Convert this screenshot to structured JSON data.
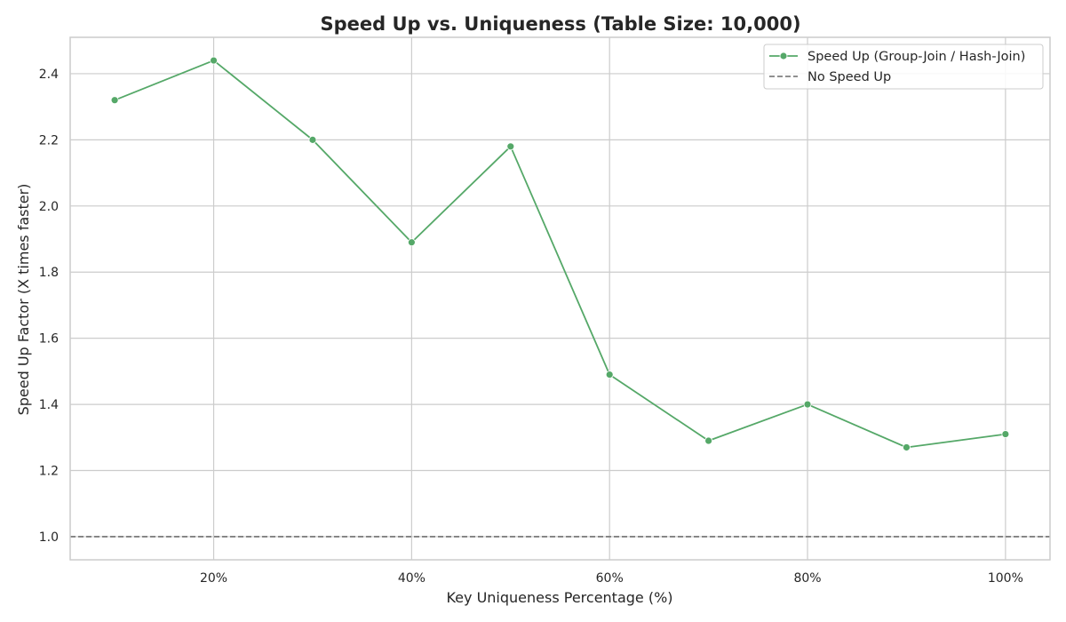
{
  "chart_data": {
    "type": "line",
    "title": "Speed Up vs. Uniqueness (Table Size: 10,000)",
    "xlabel": "Key Uniqueness Percentage (%)",
    "ylabel": "Speed Up Factor (X times faster)",
    "x": [
      10,
      20,
      30,
      40,
      50,
      60,
      70,
      80,
      90,
      100
    ],
    "xlim": [
      5.5,
      104.5
    ],
    "ylim": [
      0.93,
      2.51
    ],
    "x_ticks": [
      20,
      40,
      60,
      80,
      100
    ],
    "x_tick_labels": [
      "20%",
      "40%",
      "60%",
      "80%",
      "100%"
    ],
    "y_ticks": [
      1.0,
      1.2,
      1.4,
      1.6,
      1.8,
      2.0,
      2.2,
      2.4
    ],
    "y_tick_labels": [
      "1.0",
      "1.2",
      "1.4",
      "1.6",
      "1.8",
      "2.0",
      "2.2",
      "2.4"
    ],
    "grid": true,
    "series": [
      {
        "name": "Speed Up (Group-Join / Hash-Join)",
        "values": [
          2.32,
          2.44,
          2.2,
          1.89,
          2.18,
          1.49,
          1.29,
          1.4,
          1.27,
          1.31
        ],
        "color": "#55a868",
        "marker": "circle",
        "line_style": "solid"
      }
    ],
    "reference_lines": [
      {
        "name": "No Speed Up",
        "y": 1.0,
        "color": "#808080",
        "line_style": "dashed"
      }
    ],
    "legend_position": "top-right"
  }
}
